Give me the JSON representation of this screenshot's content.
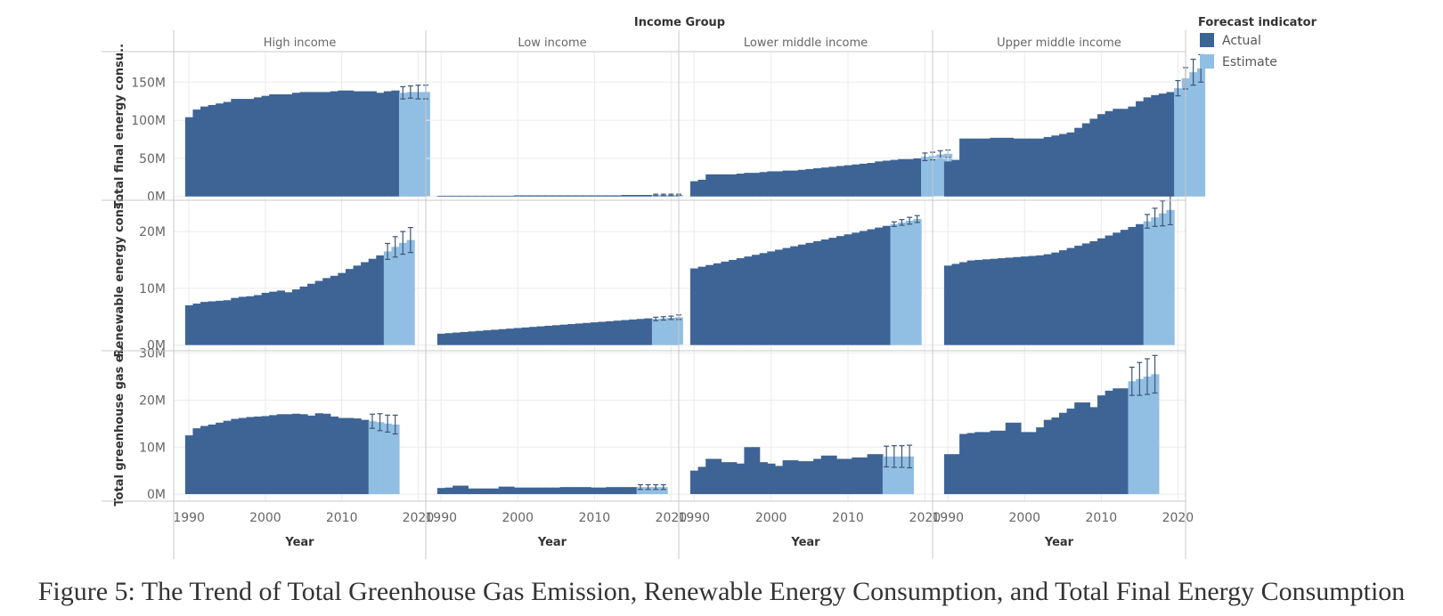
{
  "caption": "Figure 5: The Trend of Total Greenhouse Gas Emission, Renewable Energy Consumption, and Total Final Energy Consumption",
  "chart_data": {
    "type": "bar",
    "column_header": "Income Group",
    "x_axis_label": "Year",
    "columns": [
      "High income",
      "Low income",
      "Lower middle income",
      "Upper middle income"
    ],
    "x_ticks": [
      1990,
      2000,
      2010,
      2020
    ],
    "x_range": [
      1988,
      2021
    ],
    "legend": {
      "title": "Forecast indicator",
      "entries": [
        {
          "label": "Actual",
          "color": "#3e6496"
        },
        {
          "label": "Estimate",
          "color": "#91bee3"
        }
      ]
    },
    "grid": true,
    "rows": [
      {
        "label": "Total final energy consu..",
        "ylim": [
          -5,
          190
        ],
        "ticks": [
          {
            "v": 0,
            "label": "0M"
          },
          {
            "v": 50,
            "label": "50M"
          },
          {
            "v": 100,
            "label": "100M"
          },
          {
            "v": 150,
            "label": "150M"
          }
        ],
        "panels": [
          {
            "actual_start": 1990,
            "actual": [
              104,
              114,
              118,
              120,
              122,
              124,
              128,
              128,
              128,
              130,
              132,
              134,
              134,
              134,
              136,
              137,
              137,
              137,
              137,
              138,
              139,
              139,
              138,
              138,
              138,
              136,
              138,
              139
            ],
            "estimate": [
              136,
              137,
              137,
              137
            ],
            "err": [
              8,
              8,
              9,
              9
            ]
          },
          {
            "actual_start": 1990,
            "actual": [
              1,
              1,
              1,
              1,
              1,
              1,
              1,
              1,
              1,
              1,
              1.5,
              1.5,
              1.5,
              1.5,
              1.5,
              1.5,
              1.5,
              1.5,
              1.5,
              1.5,
              1.5,
              1.5,
              1.5,
              1.5,
              2,
              2,
              2,
              2
            ],
            "estimate": [
              2,
              2,
              2,
              2
            ],
            "err": [
              1,
              1,
              1,
              1
            ]
          },
          {
            "actual_start": 1990,
            "actual": [
              20,
              22,
              29,
              29,
              29,
              29,
              30,
              31,
              31,
              32,
              33,
              33,
              34,
              34,
              35,
              36,
              37,
              38,
              39,
              40,
              41,
              42,
              43,
              44,
              46,
              47,
              48,
              49,
              49,
              50
            ],
            "estimate": [
              52,
              53,
              55,
              56
            ],
            "err": [
              5,
              5,
              5,
              5
            ]
          },
          {
            "actual_start": 1990,
            "actual": [
              46,
              48,
              76,
              76,
              76,
              76,
              77,
              77,
              77,
              76,
              76,
              76,
              76,
              78,
              80,
              82,
              84,
              90,
              96,
              102,
              108,
              112,
              115,
              115,
              118,
              125,
              130,
              133,
              135,
              137
            ],
            "estimate": [
              142,
              155,
              163,
              168
            ],
            "err": [
              10,
              14,
              17,
              18
            ]
          }
        ]
      },
      {
        "label": "Renewable energy cons..",
        "ylim": [
          -1,
          25.5
        ],
        "ticks": [
          {
            "v": 0,
            "label": "0M"
          },
          {
            "v": 10,
            "label": "10M"
          },
          {
            "v": 20,
            "label": "20M"
          }
        ],
        "panels": [
          {
            "actual_start": 1990,
            "actual": [
              7,
              7.3,
              7.6,
              7.7,
              7.8,
              7.9,
              8.3,
              8.5,
              8.6,
              8.8,
              9.2,
              9.4,
              9.6,
              9.3,
              9.8,
              10.3,
              10.8,
              11.3,
              11.8,
              12.2,
              12.7,
              13.4,
              14,
              14.6,
              15.2,
              15.8
            ],
            "estimate": [
              16.5,
              17.3,
              18,
              18.5
            ],
            "err": [
              1.4,
              1.8,
              2,
              2.2
            ]
          },
          {
            "actual_start": 1990,
            "actual": [
              2,
              2.1,
              2.2,
              2.3,
              2.4,
              2.5,
              2.6,
              2.7,
              2.8,
              2.9,
              3,
              3.1,
              3.2,
              3.3,
              3.4,
              3.5,
              3.6,
              3.7,
              3.8,
              3.9,
              4,
              4.1,
              4.2,
              4.3,
              4.4,
              4.5,
              4.6,
              4.7
            ],
            "estimate": [
              4.6,
              4.7,
              4.8,
              4.9
            ],
            "err": [
              0.3,
              0.3,
              0.3,
              0.4
            ]
          },
          {
            "actual_start": 1990,
            "actual": [
              13.5,
              13.8,
              14.1,
              14.4,
              14.7,
              15,
              15.3,
              15.6,
              15.9,
              16.2,
              16.5,
              16.8,
              17.1,
              17.4,
              17.7,
              18,
              18.3,
              18.6,
              18.9,
              19.2,
              19.5,
              19.8,
              20.1,
              20.4,
              20.7,
              21
            ],
            "estimate": [
              21.3,
              21.6,
              21.9,
              22.2
            ],
            "err": [
              0.4,
              0.5,
              0.6,
              0.6
            ]
          },
          {
            "actual_start": 1990,
            "actual": [
              14,
              14.3,
              14.6,
              14.9,
              15,
              15.1,
              15.2,
              15.3,
              15.4,
              15.5,
              15.6,
              15.7,
              15.8,
              16,
              16.3,
              16.7,
              17.1,
              17.5,
              17.9,
              18.3,
              18.8,
              19.3,
              19.8,
              20.3,
              20.8,
              21.3
            ],
            "estimate": [
              21.8,
              22.5,
              23.2,
              23.8
            ],
            "err": [
              1.2,
              1.6,
              2.2,
              2.6
            ]
          }
        ]
      },
      {
        "label": "Total greenhouse gas e..",
        "ylim": [
          -1.5,
          30.5
        ],
        "ticks": [
          {
            "v": 0,
            "label": "0M"
          },
          {
            "v": 10,
            "label": "10M"
          },
          {
            "v": 20,
            "label": "20M"
          },
          {
            "v": 30,
            "label": "30M"
          }
        ],
        "panels": [
          {
            "actual_start": 1990,
            "actual": [
              12.5,
              14,
              14.5,
              14.8,
              15.2,
              15.6,
              16,
              16.2,
              16.4,
              16.5,
              16.6,
              16.8,
              17,
              17,
              17.1,
              17,
              16.7,
              17.2,
              17.1,
              16.5,
              16.2,
              16.2,
              16.1,
              15.8
            ],
            "estimate": [
              15.5,
              15.3,
              15,
              14.8
            ],
            "err": [
              1.5,
              1.8,
              1.8,
              2
            ]
          },
          {
            "actual_start": 1990,
            "actual": [
              1.3,
              1.4,
              1.8,
              1.8,
              1.2,
              1.2,
              1.2,
              1.2,
              1.6,
              1.6,
              1.4,
              1.4,
              1.4,
              1.4,
              1.4,
              1.4,
              1.5,
              1.5,
              1.5,
              1.5,
              1.4,
              1.4,
              1.5,
              1.5,
              1.5,
              1.5
            ],
            "estimate": [
              1.5,
              1.5,
              1.5,
              1.5
            ],
            "err": [
              0.5,
              0.5,
              0.5,
              0.5
            ]
          },
          {
            "actual_start": 1990,
            "actual": [
              5,
              5.8,
              7.5,
              7.5,
              6.8,
              6.8,
              6.5,
              10,
              10,
              6.8,
              6.5,
              6,
              7.2,
              7.2,
              7,
              7,
              7.5,
              8.2,
              8.2,
              7.5,
              7.5,
              7.8,
              7.8,
              8.5,
              8.5
            ],
            "estimate": [
              8,
              8,
              8,
              8
            ],
            "err": [
              2.2,
              2.3,
              2.3,
              2.4
            ]
          },
          {
            "actual_start": 1990,
            "actual": [
              8.5,
              8.5,
              12.8,
              13,
              13.2,
              13.2,
              13.5,
              13.5,
              15.2,
              15.2,
              13.2,
              13.2,
              14.2,
              15.8,
              16.3,
              17.3,
              18.2,
              19.5,
              19.5,
              18.5,
              21,
              22,
              22.5,
              22.5
            ],
            "estimate": [
              24,
              24.5,
              25,
              25.5
            ],
            "err": [
              3,
              3.5,
              3.8,
              4
            ]
          }
        ]
      }
    ]
  }
}
